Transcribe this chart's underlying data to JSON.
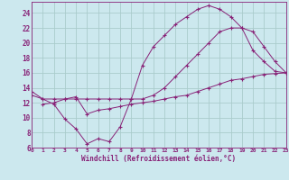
{
  "xlabel": "Windchill (Refroidissement éolien,°C)",
  "bg_color": "#cce8ee",
  "grid_color": "#aacccc",
  "line_color": "#882277",
  "xlim": [
    0,
    23
  ],
  "ylim": [
    6,
    25
  ],
  "yticks": [
    6,
    8,
    10,
    12,
    14,
    16,
    18,
    20,
    22,
    24
  ],
  "xticks": [
    0,
    1,
    2,
    3,
    4,
    5,
    6,
    7,
    8,
    9,
    10,
    11,
    12,
    13,
    14,
    15,
    16,
    17,
    18,
    19,
    20,
    21,
    22,
    23
  ],
  "line1_x": [
    0,
    1,
    2,
    3,
    4,
    5,
    6,
    7,
    8,
    9,
    10,
    11,
    12,
    13,
    14,
    15,
    16,
    17,
    18,
    19,
    20,
    21,
    22,
    23
  ],
  "line1_y": [
    13.5,
    12.5,
    11.8,
    9.8,
    8.5,
    6.5,
    7.2,
    6.8,
    8.8,
    12.5,
    17.0,
    19.5,
    21.0,
    22.5,
    23.5,
    24.5,
    25.0,
    24.5,
    23.5,
    22.0,
    19.0,
    17.5,
    16.2,
    16.0
  ],
  "line2_x": [
    0,
    1,
    2,
    3,
    4,
    5,
    6,
    7,
    8,
    9,
    10,
    11,
    12,
    13,
    14,
    15,
    16,
    17,
    18,
    19,
    20,
    21,
    22,
    23
  ],
  "line2_y": [
    13.0,
    12.5,
    12.5,
    12.5,
    12.5,
    12.5,
    12.5,
    12.5,
    12.5,
    12.5,
    12.5,
    13.0,
    14.0,
    15.5,
    17.0,
    18.5,
    20.0,
    21.5,
    22.0,
    22.0,
    21.5,
    19.5,
    17.5,
    16.0
  ],
  "line3_x": [
    1,
    2,
    3,
    4,
    5,
    6,
    7,
    8,
    9,
    10,
    11,
    12,
    13,
    14,
    15,
    16,
    17,
    18,
    19,
    20,
    21,
    22,
    23
  ],
  "line3_y": [
    11.8,
    12.0,
    12.5,
    12.8,
    10.5,
    11.0,
    11.2,
    11.5,
    11.8,
    12.0,
    12.2,
    12.5,
    12.8,
    13.0,
    13.5,
    14.0,
    14.5,
    15.0,
    15.2,
    15.5,
    15.8,
    15.9,
    16.0
  ]
}
